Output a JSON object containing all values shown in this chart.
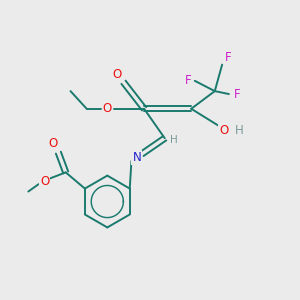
{
  "bg_color": "#ebebeb",
  "bond_color": "#1a7a6e",
  "O_color": "#ee1111",
  "N_color": "#2222cc",
  "F_color": "#cc22cc",
  "H_color": "#7a9a9a",
  "figsize": [
    3.0,
    3.0
  ],
  "dpi": 100,
  "xlim": [
    0,
    10
  ],
  "ylim": [
    0,
    10
  ]
}
